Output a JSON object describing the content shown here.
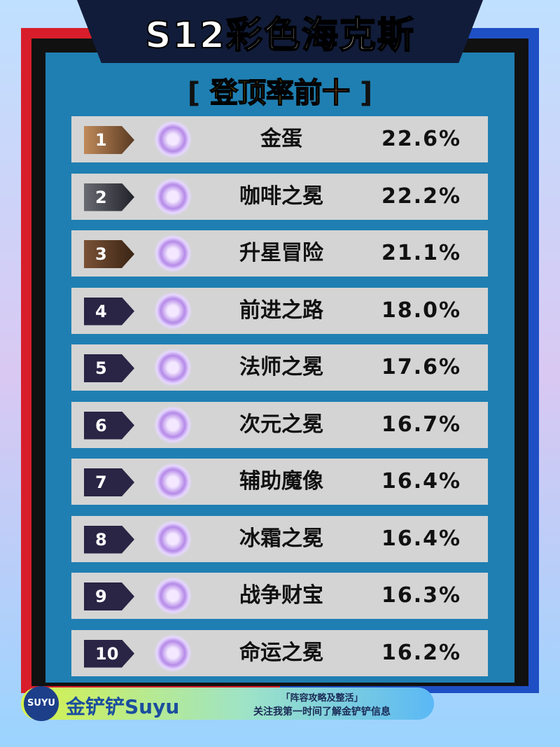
{
  "header": {
    "title": "S12彩色海克斯",
    "subtitle": {
      "open": "[",
      "part1": "登顶率",
      "part2": "前十",
      "close": "]"
    }
  },
  "table": {
    "rows": [
      {
        "rank": 1,
        "name": "金蛋",
        "rate": "22.6%"
      },
      {
        "rank": 2,
        "name": "咖啡之冕",
        "rate": "22.2%"
      },
      {
        "rank": 3,
        "name": "升星冒险",
        "rate": "21.1%"
      },
      {
        "rank": 4,
        "name": "前进之路",
        "rate": "18.0%"
      },
      {
        "rank": 5,
        "name": "法师之冕",
        "rate": "17.6%"
      },
      {
        "rank": 6,
        "name": "次元之冕",
        "rate": "16.7%"
      },
      {
        "rank": 7,
        "name": "辅助魔像",
        "rate": "16.4%"
      },
      {
        "rank": 8,
        "name": "冰霜之冕",
        "rate": "16.4%"
      },
      {
        "rank": 9,
        "name": "战争财宝",
        "rate": "16.3%"
      },
      {
        "rank": 10,
        "name": "命运之冕",
        "rate": "16.2%"
      }
    ]
  },
  "footer": {
    "logo": "SUYU",
    "brand": "金铲铲Suyu",
    "tagline": "「阵容攻略及整活」",
    "note": "关注我第一时间了解金铲铲信息"
  }
}
